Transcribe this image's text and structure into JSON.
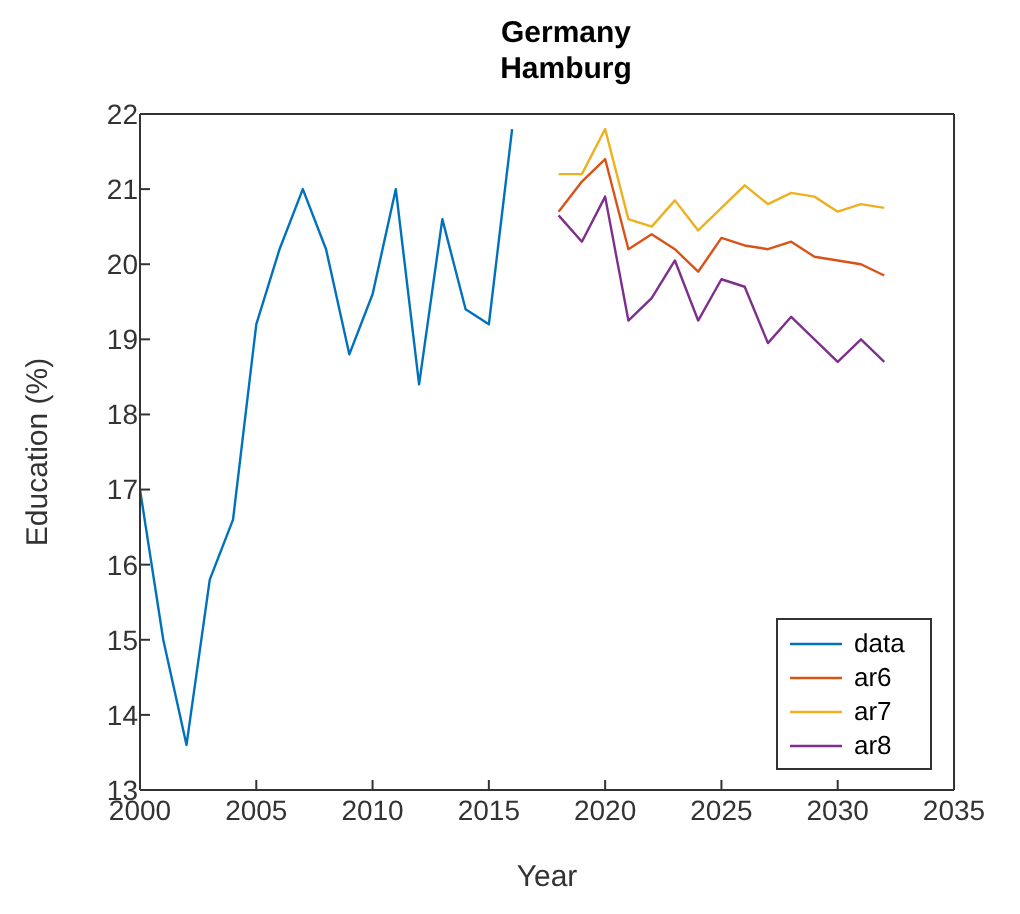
{
  "chart_data": {
    "type": "line",
    "title": "Germany\nHamburg",
    "xlabel": "Year",
    "ylabel": "Education (%)",
    "xlim": [
      2000,
      2035
    ],
    "xticks": [
      2000,
      2005,
      2010,
      2015,
      2020,
      2025,
      2030,
      2035
    ],
    "ylim": [
      13,
      22
    ],
    "yticks": [
      13,
      14,
      15,
      16,
      17,
      18,
      19,
      20,
      21,
      22
    ],
    "legend": "bottom right",
    "grid": false,
    "series": [
      {
        "name": "data",
        "color": "#0072bd",
        "x": [
          2000,
          2001,
          2002,
          2003,
          2004,
          2005,
          2006,
          2007,
          2008,
          2009,
          2010,
          2011,
          2012,
          2013,
          2014,
          2015,
          2016
        ],
        "values": [
          17,
          15.0,
          13.6,
          15.8,
          16.6,
          19.2,
          20.2,
          21.0,
          20.2,
          18.8,
          19.6,
          21.0,
          18.4,
          20.6,
          19.4,
          19.2,
          21.8
        ]
      },
      {
        "name": "ar6",
        "color": "#d95319",
        "x": [
          2018,
          2019,
          2020,
          2021,
          2022,
          2023,
          2024,
          2025,
          2026,
          2027,
          2028,
          2029,
          2030,
          2031,
          2032
        ],
        "values": [
          20.7,
          21.1,
          21.4,
          20.2,
          20.4,
          20.2,
          19.9,
          20.35,
          20.25,
          20.2,
          20.3,
          20.1,
          20.05,
          20.0,
          19.85
        ]
      },
      {
        "name": "ar7",
        "color": "#edb120",
        "x": [
          2018,
          2019,
          2020,
          2021,
          2022,
          2023,
          2024,
          2025,
          2026,
          2027,
          2028,
          2029,
          2030,
          2031,
          2032
        ],
        "values": [
          21.2,
          21.2,
          21.8,
          20.6,
          20.5,
          20.85,
          20.45,
          20.75,
          21.05,
          20.8,
          20.95,
          20.9,
          20.7,
          20.8,
          20.75
        ]
      },
      {
        "name": "ar8",
        "color": "#7e2f8e",
        "x": [
          2018,
          2019,
          2020,
          2021,
          2022,
          2023,
          2024,
          2025,
          2026,
          2027,
          2028,
          2029,
          2030,
          2031,
          2032
        ],
        "values": [
          20.65,
          20.3,
          20.9,
          19.25,
          19.55,
          20.05,
          19.25,
          19.8,
          19.7,
          18.95,
          19.3,
          19.0,
          18.7,
          19.0,
          18.7
        ]
      }
    ]
  }
}
